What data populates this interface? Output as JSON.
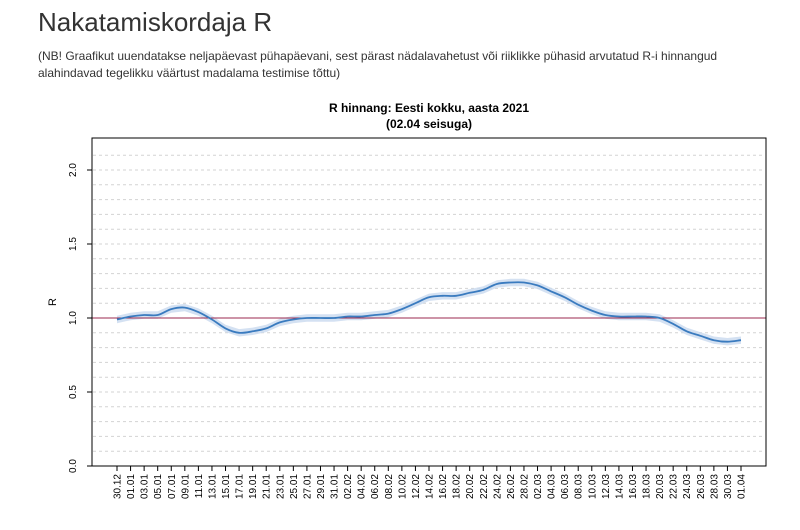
{
  "header": {
    "title": "Nakatamiskordaja R",
    "note": "(NB! Graafikut uuendatakse neljapäevast pühapäevani, sest pärast nädalavahetust või riiklikke pühasid arvutatud R-i hinnangud alahindavad tegelikku väärtust madalama testimise tõttu)"
  },
  "chart_data": {
    "type": "line",
    "title": "R hinnang: Eesti kokku, aasta 2021",
    "subtitle": "(02.04 seisuga)",
    "ylabel": "R",
    "xlabel": "",
    "ylim": [
      0,
      2.2
    ],
    "yticks": [
      "0.0",
      "0.5",
      "1.0",
      "1.5",
      "2.0"
    ],
    "grid": true,
    "reference_line": 1.0,
    "colors": {
      "line": "#3a7bbf",
      "band": "#c9d9ef",
      "reference": "#9b2a4f",
      "grid": "#d3d3d3"
    },
    "categories": [
      "30.12",
      "01.01",
      "03.01",
      "05.01",
      "07.01",
      "09.01",
      "11.01",
      "13.01",
      "15.01",
      "17.01",
      "19.01",
      "21.01",
      "23.01",
      "25.01",
      "27.01",
      "29.01",
      "31.01",
      "02.02",
      "04.02",
      "06.02",
      "08.02",
      "10.02",
      "12.02",
      "14.02",
      "16.02",
      "18.02",
      "20.02",
      "22.02",
      "24.02",
      "26.02",
      "28.02",
      "02.03",
      "04.03",
      "06.03",
      "08.03",
      "10.03",
      "12.03",
      "14.03",
      "16.03",
      "18.03",
      "20.03",
      "22.03",
      "24.03",
      "26.03",
      "28.03",
      "30.03",
      "01.04"
    ],
    "series": [
      {
        "values": [
          0.99,
          1.01,
          1.02,
          1.02,
          1.06,
          1.07,
          1.04,
          0.99,
          0.93,
          0.9,
          0.91,
          0.93,
          0.97,
          0.99,
          1.0,
          1.0,
          1.0,
          1.01,
          1.01,
          1.02,
          1.03,
          1.06,
          1.1,
          1.14,
          1.15,
          1.15,
          1.17,
          1.19,
          1.23,
          1.24,
          1.24,
          1.22,
          1.18,
          1.14,
          1.09,
          1.05,
          1.02,
          1.01,
          1.01,
          1.01,
          1.0,
          0.96,
          0.91,
          0.88,
          0.85,
          0.84,
          0.85
        ]
      }
    ]
  }
}
